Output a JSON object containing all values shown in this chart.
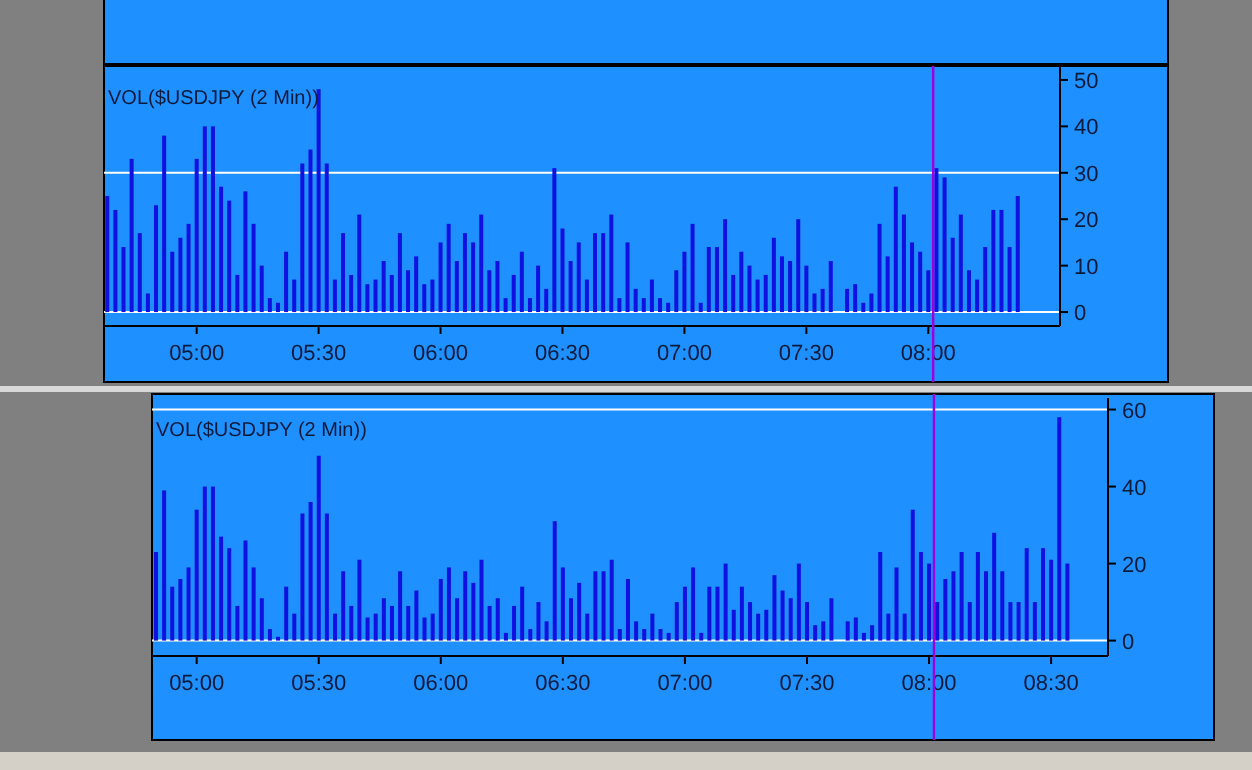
{
  "chart_data": [
    {
      "type": "bar",
      "title": "VOL($USDJPY (2 Min))",
      "color": "#1010e0",
      "x": [
        4.6333,
        4.6667,
        4.7,
        4.7333,
        4.7667,
        4.8,
        4.8333,
        4.8667,
        4.9,
        4.9333,
        4.9667,
        5,
        5.0333,
        5.0667,
        5.1,
        5.1333,
        5.1667,
        5.2,
        5.2333,
        5.2667,
        5.3,
        5.3333,
        5.3667,
        5.4,
        5.4333,
        5.4667,
        5.5,
        5.5333,
        5.5667,
        5.6,
        5.6333,
        5.6667,
        5.7,
        5.7333,
        5.7667,
        5.8,
        5.8333,
        5.8667,
        5.9,
        5.9333,
        5.9667,
        6,
        6.0333,
        6.0667,
        6.1,
        6.1333,
        6.1667,
        6.2,
        6.2333,
        6.2667,
        6.3,
        6.3333,
        6.3667,
        6.4,
        6.4333,
        6.4667,
        6.5,
        6.5333,
        6.5667,
        6.6,
        6.6333,
        6.6667,
        6.7,
        6.7333,
        6.7667,
        6.8,
        6.8333,
        6.8667,
        6.9,
        6.9333,
        6.9667,
        7,
        7.0333,
        7.0667,
        7.1,
        7.1333,
        7.1667,
        7.2,
        7.2333,
        7.2667,
        7.3,
        7.3333,
        7.3667,
        7.4,
        7.4333,
        7.4667,
        7.5,
        7.5333,
        7.5667,
        7.6,
        7.6333,
        7.6667,
        7.7,
        7.7333,
        7.7667,
        7.8,
        7.8333,
        7.8667,
        7.9,
        7.9333,
        7.9667,
        8,
        8.0333,
        8.0667,
        8.1,
        8.1333,
        8.1667,
        8.2,
        8.2333,
        8.2667,
        8.3,
        8.3333,
        8.3667
      ],
      "values": [
        25,
        22,
        14,
        33,
        17,
        4,
        23,
        38,
        13,
        16,
        19,
        33,
        40,
        40,
        27,
        24,
        8,
        26,
        19,
        10,
        3,
        2,
        13,
        7,
        32,
        35,
        48,
        32,
        7,
        17,
        8,
        21,
        6,
        7,
        11,
        8,
        17,
        9,
        12,
        6,
        7,
        15,
        19,
        11,
        17,
        15,
        21,
        9,
        11,
        3,
        8,
        13,
        3,
        10,
        5,
        31,
        18,
        11,
        15,
        7,
        17,
        17,
        21,
        3,
        15,
        5,
        3,
        7,
        3,
        2,
        9,
        13,
        19,
        2,
        14,
        14,
        20,
        8,
        13,
        10,
        7,
        8,
        16,
        12,
        11,
        20,
        10,
        4,
        5,
        11,
        0,
        5,
        6,
        2,
        4,
        19,
        12,
        27,
        21,
        15,
        13,
        9,
        31,
        29,
        16,
        21,
        9,
        7,
        14,
        22,
        22,
        14,
        25
      ],
      "xlim": [
        4.62,
        8.54
      ],
      "xticks": [
        {
          "value": 5,
          "label": "05:00"
        },
        {
          "value": 5.5,
          "label": "05:30"
        },
        {
          "value": 6,
          "label": "06:00"
        },
        {
          "value": 6.5,
          "label": "06:30"
        },
        {
          "value": 7,
          "label": "07:00"
        },
        {
          "value": 7.5,
          "label": "07:30"
        },
        {
          "value": 8,
          "label": "08:00"
        }
      ],
      "ylim": [
        -3,
        53
      ],
      "yticks": [
        0,
        10,
        20,
        30,
        40,
        50
      ],
      "ref_lines": [
        {
          "axis": "y",
          "value": 0,
          "color": "#ffffff"
        },
        {
          "axis": "y",
          "value": 30,
          "color": "#ffffff"
        },
        {
          "axis": "x",
          "value": 8.02,
          "color": "#a000e0"
        }
      ]
    },
    {
      "type": "bar",
      "title": "VOL($USDJPY (2 Min))",
      "color": "#1010e0",
      "x": [
        4.8333,
        4.8667,
        4.9,
        4.9333,
        4.9667,
        5,
        5.0333,
        5.0667,
        5.1,
        5.1333,
        5.1667,
        5.2,
        5.2333,
        5.2667,
        5.3,
        5.3333,
        5.3667,
        5.4,
        5.4333,
        5.4667,
        5.5,
        5.5333,
        5.5667,
        5.6,
        5.6333,
        5.6667,
        5.7,
        5.7333,
        5.7667,
        5.8,
        5.8333,
        5.8667,
        5.9,
        5.9333,
        5.9667,
        6,
        6.0333,
        6.0667,
        6.1,
        6.1333,
        6.1667,
        6.2,
        6.2333,
        6.2667,
        6.3,
        6.3333,
        6.3667,
        6.4,
        6.4333,
        6.4667,
        6.5,
        6.5333,
        6.5667,
        6.6,
        6.6333,
        6.6667,
        6.7,
        6.7333,
        6.7667,
        6.8,
        6.8333,
        6.8667,
        6.9,
        6.9333,
        6.9667,
        7,
        7.0333,
        7.0667,
        7.1,
        7.1333,
        7.1667,
        7.2,
        7.2333,
        7.2667,
        7.3,
        7.3333,
        7.3667,
        7.4,
        7.4333,
        7.4667,
        7.5,
        7.5333,
        7.5667,
        7.6,
        7.6333,
        7.6667,
        7.7,
        7.7333,
        7.7667,
        7.8,
        7.8333,
        7.8667,
        7.9,
        7.9333,
        7.9667,
        8,
        8.0333,
        8.0667,
        8.1,
        8.1333,
        8.1667,
        8.2,
        8.2333,
        8.2667,
        8.3,
        8.3333,
        8.3667,
        8.4,
        8.4333,
        8.4667,
        8.5,
        8.5333,
        8.5667
      ],
      "values": [
        23,
        39,
        14,
        16,
        19,
        34,
        40,
        40,
        27,
        24,
        9,
        26,
        19,
        11,
        3,
        1,
        14,
        7,
        33,
        36,
        48,
        33,
        7,
        18,
        9,
        21,
        6,
        7,
        11,
        9,
        18,
        9,
        13,
        6,
        7,
        16,
        19,
        11,
        18,
        15,
        21,
        9,
        11,
        2,
        9,
        14,
        3,
        10,
        5,
        31,
        19,
        11,
        15,
        7,
        18,
        18,
        21,
        3,
        16,
        5,
        3,
        7,
        3,
        2,
        10,
        14,
        19,
        2,
        14,
        14,
        20,
        8,
        14,
        10,
        7,
        8,
        17,
        13,
        11,
        20,
        10,
        4,
        5,
        11,
        0,
        5,
        6,
        2,
        4,
        23,
        7,
        19,
        7,
        34,
        23,
        20,
        10,
        16,
        18,
        23,
        10,
        23,
        18,
        28,
        18,
        10,
        10,
        24,
        10,
        24,
        21,
        58,
        20
      ],
      "xlim": [
        4.817,
        8.733
      ],
      "xticks": [
        {
          "value": 5,
          "label": "05:00"
        },
        {
          "value": 5.5,
          "label": "05:30"
        },
        {
          "value": 6,
          "label": "06:00"
        },
        {
          "value": 6.5,
          "label": "06:30"
        },
        {
          "value": 7,
          "label": "07:00"
        },
        {
          "value": 7.5,
          "label": "07:30"
        },
        {
          "value": 8,
          "label": "08:00"
        },
        {
          "value": 8.5,
          "label": "08:30"
        }
      ],
      "ylim": [
        -4,
        63
      ],
      "yticks": [
        0,
        20,
        40,
        60
      ],
      "ref_lines": [
        {
          "axis": "y",
          "value": 0,
          "color": "#ffffff"
        },
        {
          "axis": "y",
          "value": 60,
          "color": "#ffffff"
        },
        {
          "axis": "x",
          "value": 8.02,
          "color": "#a000e0"
        }
      ]
    }
  ]
}
